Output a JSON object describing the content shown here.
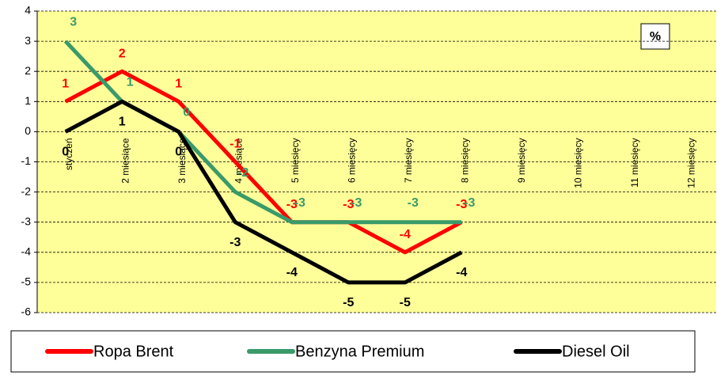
{
  "chart_data": {
    "type": "line",
    "annotation": "%",
    "categories": [
      "styczeń",
      "2 miesiące",
      "3 miesiące",
      "4 miesiące",
      "5 miesięcy",
      "6 miesięcy",
      "7 miesięcy",
      "8 miesięcy",
      "9 miesięcy",
      "10 miesięcy",
      "11 miesięcy",
      "12 miesięcy"
    ],
    "series": [
      {
        "name": "Ropa Brent",
        "color": "#ff0000",
        "values": [
          1,
          2,
          1,
          -1,
          -3,
          -3,
          -4,
          -3,
          null,
          null,
          null,
          null
        ]
      },
      {
        "name": "Benzyna Premium",
        "color": "#3a9a6a",
        "values": [
          3,
          1,
          0,
          -2,
          -3,
          -3,
          -3,
          -3,
          null,
          null,
          null,
          null
        ]
      },
      {
        "name": "Diesel Oil",
        "color": "#000000",
        "values": [
          0,
          1,
          0,
          -3,
          -4,
          -5,
          -5,
          -4,
          null,
          null,
          null,
          null
        ]
      }
    ],
    "ylim": [
      -6,
      4
    ],
    "yticks": [
      -6,
      -5,
      -4,
      -3,
      -2,
      -1,
      0,
      1,
      2,
      3,
      4
    ],
    "grid": true
  }
}
